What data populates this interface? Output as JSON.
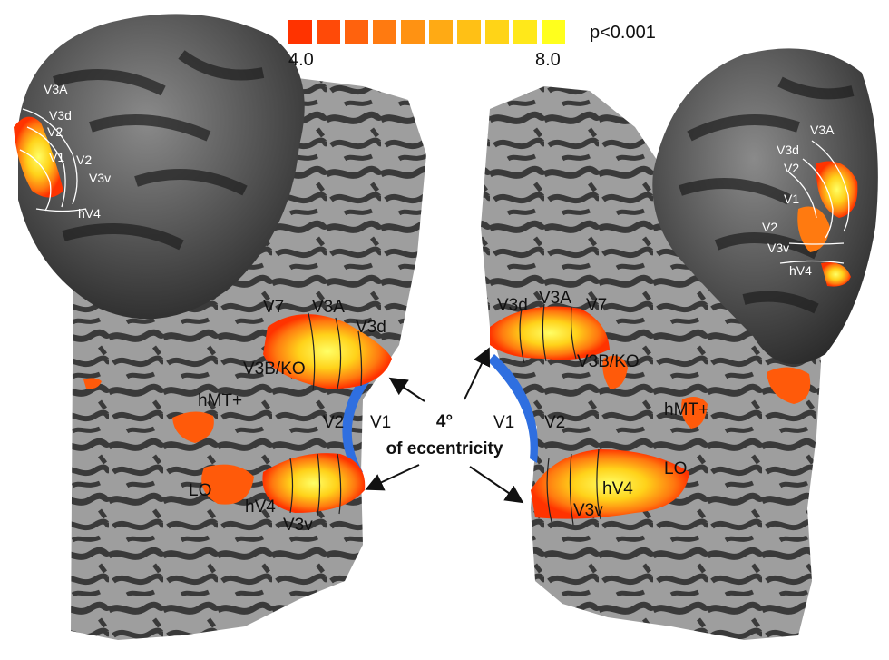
{
  "colorbar": {
    "threshold": "p<0.001",
    "min_label": "4.0",
    "max_label": "8.0",
    "swatches": [
      "#ff3300",
      "#ff4a08",
      "#ff620d",
      "#ff7a10",
      "#ff9212",
      "#ffaa14",
      "#ffc015",
      "#ffd417",
      "#ffe81a",
      "#ffff1d"
    ]
  },
  "left_flatmap": {
    "labels": [
      "V7",
      "V3A",
      "V3d",
      "V3B/KO",
      "hMT+",
      "V2",
      "V1",
      "LO",
      "hV4",
      "V3v"
    ]
  },
  "right_flatmap": {
    "labels": [
      "V3d",
      "V3A",
      "V7",
      "V3B/KO",
      "hMT+",
      "V1",
      "V2",
      "LO",
      "hV4",
      "V3v"
    ]
  },
  "left_inflated": {
    "labels": [
      "V3A",
      "V3d",
      "V2",
      "V1",
      "V2",
      "V3v",
      "hV4"
    ]
  },
  "right_inflated": {
    "labels": [
      "V3A",
      "V3d",
      "V2",
      "V1",
      "V2",
      "V3v",
      "hV4"
    ]
  },
  "center_annotation": {
    "line1": "4°",
    "line2": "of eccentricity"
  },
  "colors": {
    "sulcus": "#3a3a3a",
    "gyrus": "#9e9e9e",
    "eccentricity_band": "#2f6fe0",
    "activation_low": "#ff3300",
    "activation_high": "#ffff1d"
  }
}
